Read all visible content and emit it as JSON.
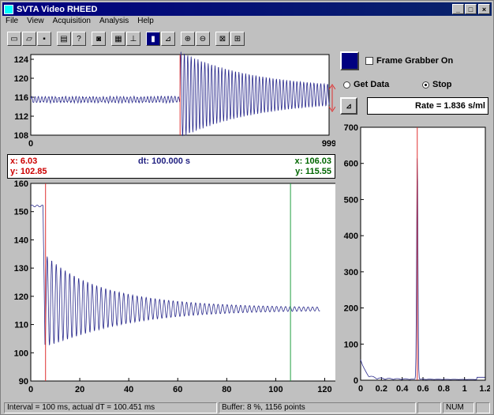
{
  "window": {
    "title": "SVTA Video RHEED"
  },
  "menu": [
    "File",
    "View",
    "Acquisition",
    "Analysis",
    "Help"
  ],
  "toolbar": {
    "icons": [
      "new-icon",
      "open-icon",
      "save-icon",
      "print-icon",
      "help-icon",
      "camera-icon",
      "measure-icon",
      "graph-icon",
      "frame-grabber-icon",
      "plot-icon",
      "zoom-in-icon",
      "zoom-out-icon",
      "export-icon",
      "settings-icon"
    ]
  },
  "controls": {
    "frame_grabber_label": "Frame Grabber On",
    "frame_grabber_checked": false,
    "get_data_label": "Get Data",
    "stop_label": "Stop",
    "selected_mode": "Stop",
    "rate_text": "Rate = 1.836 s/ml"
  },
  "readout": {
    "cursor1_x": "x: 6.03",
    "cursor1_y": "y: 102.85",
    "dt": "dt: 100.000 s",
    "cursor2_x": "x: 106.03",
    "cursor2_y": "y: 115.55"
  },
  "status": {
    "interval": "Interval = 100 ms, actual dT = 100.451 ms",
    "buffer": "Buffer: 8 %, 1156 points",
    "num": "NUM"
  },
  "colors": {
    "trace": "#2a2a8c",
    "cursor1": "#e03030",
    "cursor2": "#20a040",
    "readout_red": "#cc0000",
    "readout_blue": "#202080",
    "readout_green": "#006600"
  },
  "chart_data": [
    {
      "type": "line",
      "name": "top-overview",
      "xlim": [
        0,
        999
      ],
      "ylim": [
        108,
        125
      ],
      "xticks": [
        "0",
        "999"
      ],
      "yticks": [
        "108",
        "112",
        "116",
        "120",
        "124"
      ],
      "cursor_x": 500,
      "series": [
        {
          "baseline": 115.5,
          "start_index": 500,
          "peak_amplitude": 8,
          "decay": 0.004
        }
      ]
    },
    {
      "type": "line",
      "name": "main-oscillation",
      "xlim": [
        0,
        125
      ],
      "ylim": [
        90,
        160
      ],
      "xticks": [
        "0",
        "20",
        "40",
        "60",
        "80",
        "100",
        "120"
      ],
      "yticks": [
        "90",
        "100",
        "110",
        "120",
        "130",
        "140",
        "150",
        "160"
      ],
      "cursor1_x": 6.03,
      "cursor2_x": 106.03,
      "series": [
        {
          "initial": 152,
          "drop_at": 5,
          "baseline": 115.5,
          "first_min": 102.85,
          "first_max": 134,
          "period": 1.836,
          "end": 116
        }
      ]
    },
    {
      "type": "line",
      "name": "fft-spectrum",
      "xlim": [
        0,
        1.2
      ],
      "ylim": [
        0,
        700
      ],
      "xticks": [
        "0",
        "0.2",
        "0.4",
        "0.6",
        "0.8",
        "1",
        "1.2"
      ],
      "yticks": [
        "0",
        "100",
        "200",
        "300",
        "400",
        "500",
        "600",
        "700"
      ],
      "cursor_x": 0.545,
      "peak": {
        "x": 0.545,
        "y": 620
      }
    }
  ]
}
